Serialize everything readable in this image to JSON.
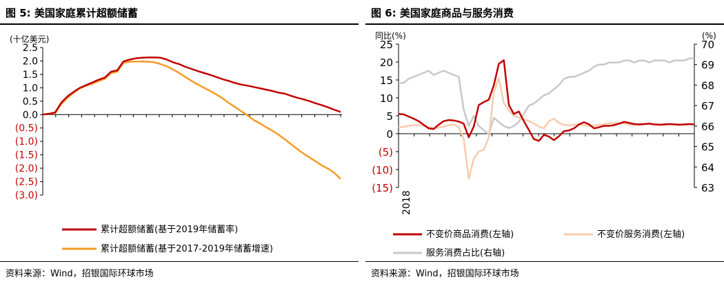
{
  "left": {
    "title": "图 5: 美国家庭累计超额储蓄",
    "source": "资料来源：Wind，招银国际环球市场"
  },
  "right": {
    "title": "图 6: 美国家庭商品与服务消费",
    "source": "资料来源：Wind，招银国际环球市场"
  },
  "colors": {
    "dark_red": "#C00000",
    "orange": "#F59A23",
    "peach": "#F8CBAD",
    "gray": "#C8C8C8",
    "negative_tick": "#C00000"
  },
  "chart_data": [
    {
      "type": "line",
      "title": "图 5: 美国家庭累计超额储蓄",
      "ylabel": "(十亿美元)",
      "ylim": [
        -3.0,
        2.5
      ],
      "ytick_labels": [
        "2.5",
        "2.0",
        "1.5",
        "1.0",
        "0.5",
        "0.0",
        "(0.5)",
        "(1.0)",
        "(1.5)",
        "(2.0)",
        "(2.5)",
        "(3.0)"
      ],
      "grid": false,
      "legend_position": "bottom",
      "x": [
        0,
        1,
        2,
        3,
        4,
        5,
        6,
        7,
        8,
        9,
        10,
        11,
        12,
        13,
        14,
        15,
        16,
        17,
        18,
        19,
        20,
        21,
        22,
        23,
        24,
        25,
        26,
        27,
        28,
        29,
        30,
        31,
        32,
        33,
        34,
        35,
        36,
        37,
        38,
        39,
        40,
        41,
        42,
        43,
        44,
        45,
        46,
        47,
        48
      ],
      "series": [
        {
          "name": "累计超额储蓄(基于2019年储蓄率)",
          "color": "#C00000",
          "values": [
            0.0,
            0.03,
            0.08,
            0.45,
            0.68,
            0.85,
            1.0,
            1.1,
            1.2,
            1.3,
            1.38,
            1.6,
            1.65,
            1.98,
            2.05,
            2.1,
            2.12,
            2.13,
            2.13,
            2.12,
            2.05,
            1.95,
            1.88,
            1.78,
            1.7,
            1.62,
            1.55,
            1.48,
            1.4,
            1.32,
            1.25,
            1.18,
            1.12,
            1.08,
            1.03,
            0.98,
            0.93,
            0.88,
            0.82,
            0.78,
            0.7,
            0.63,
            0.57,
            0.5,
            0.42,
            0.35,
            0.27,
            0.18,
            0.1
          ]
        },
        {
          "name": "累计超额储蓄(基于2017-2019年储蓄增速)",
          "color": "#F59A23",
          "values": [
            0.0,
            0.03,
            0.05,
            0.4,
            0.63,
            0.82,
            0.98,
            1.08,
            1.15,
            1.25,
            1.33,
            1.55,
            1.6,
            1.93,
            1.97,
            1.98,
            1.98,
            1.97,
            1.95,
            1.88,
            1.8,
            1.68,
            1.55,
            1.4,
            1.25,
            1.12,
            1.0,
            0.88,
            0.75,
            0.6,
            0.43,
            0.28,
            0.12,
            -0.03,
            -0.2,
            -0.33,
            -0.47,
            -0.6,
            -0.75,
            -0.92,
            -1.1,
            -1.28,
            -1.45,
            -1.6,
            -1.75,
            -1.9,
            -2.02,
            -2.18,
            -2.4
          ]
        }
      ]
    },
    {
      "type": "line",
      "title": "图 6: 美国家庭商品与服务消费",
      "ylabel_left": "同比(%)",
      "ylabel_right": "(%)",
      "ylim_left": [
        -15,
        25
      ],
      "ylim_right": [
        63,
        70
      ],
      "ytick_labels_left": [
        "25",
        "20",
        "15",
        "10",
        "5",
        "0",
        "(5)",
        "(10)",
        "(15)"
      ],
      "ytick_labels_right": [
        "70",
        "69",
        "68",
        "67",
        "66",
        "65",
        "64",
        "63"
      ],
      "x_tick_label": "2018",
      "grid": false,
      "legend_position": "bottom",
      "x": [
        0,
        1,
        2,
        3,
        4,
        5,
        6,
        7,
        8,
        9,
        10,
        11,
        12,
        13,
        14,
        15,
        16,
        17,
        18,
        19,
        20,
        21,
        22,
        23,
        24,
        25,
        26,
        27,
        28,
        29,
        30,
        31,
        32,
        33,
        34,
        35,
        36,
        37,
        38,
        39,
        40,
        41,
        42,
        43,
        44,
        45,
        46,
        47,
        48,
        49,
        50,
        51,
        52,
        53,
        54,
        55,
        56,
        57,
        58,
        59
      ],
      "series": [
        {
          "name": "不变价商品消费(左轴)",
          "axis": "left",
          "color": "#C00000",
          "values": [
            5.5,
            5.4,
            4.8,
            4.2,
            3.5,
            2.5,
            1.5,
            1.3,
            2.5,
            3.5,
            3.8,
            3.7,
            3.4,
            2.8,
            -1.0,
            2.0,
            8.0,
            8.8,
            9.5,
            13.5,
            19.5,
            20.5,
            8.0,
            5.5,
            6.2,
            3.5,
            1.0,
            -1.5,
            -2.0,
            -0.3,
            -0.8,
            -1.8,
            -0.7,
            0.7,
            0.9,
            1.5,
            2.6,
            3.2,
            2.6,
            1.5,
            1.8,
            2.2,
            2.2,
            2.4,
            2.8,
            3.3,
            3.0,
            2.7,
            2.6,
            2.7,
            2.8,
            2.6,
            2.5,
            2.6,
            2.7,
            2.6,
            2.5,
            2.6,
            2.7,
            2.6
          ]
        },
        {
          "name": "不变价服务消费(左轴)",
          "axis": "left",
          "color": "#F8CBAD",
          "values": [
            1.8,
            1.9,
            2.2,
            2.4,
            2.4,
            2.2,
            1.8,
            1.6,
            1.7,
            2.0,
            2.4,
            2.6,
            1.8,
            -1.5,
            -12.5,
            -7.0,
            -5.0,
            -4.5,
            -1.0,
            11.5,
            15.5,
            8.5,
            6.5,
            5.0,
            4.5,
            4.0,
            3.5,
            2.8,
            2.0,
            1.5,
            3.5,
            4.2,
            3.0,
            2.5,
            2.3,
            2.5,
            2.6,
            2.3,
            2.2,
            2.3,
            2.5,
            2.7,
            2.9,
            3.0,
            3.0,
            2.8,
            2.5,
            2.4,
            2.5,
            2.6,
            2.7,
            2.6,
            2.5,
            2.4,
            2.6,
            2.7,
            2.6,
            2.5,
            2.6,
            2.7
          ]
        },
        {
          "name": "服务消费占比(右轴)",
          "axis": "right",
          "color": "#C8C8C8",
          "values": [
            68.1,
            68.1,
            68.3,
            68.4,
            68.5,
            68.6,
            68.7,
            68.5,
            68.6,
            68.7,
            68.6,
            68.5,
            68.4,
            66.8,
            66.0,
            66.5,
            66.0,
            65.8,
            65.6,
            66.4,
            66.2,
            66.0,
            65.9,
            66.0,
            66.2,
            66.6,
            67.0,
            67.1,
            67.3,
            67.5,
            67.6,
            67.8,
            68.0,
            68.3,
            68.4,
            68.4,
            68.5,
            68.6,
            68.7,
            68.9,
            69.0,
            69.0,
            69.1,
            69.1,
            69.1,
            69.2,
            69.2,
            69.1,
            69.2,
            69.2,
            69.1,
            69.2,
            69.2,
            69.2,
            69.1,
            69.2,
            69.2,
            69.2,
            69.3,
            69.3
          ]
        }
      ]
    }
  ]
}
